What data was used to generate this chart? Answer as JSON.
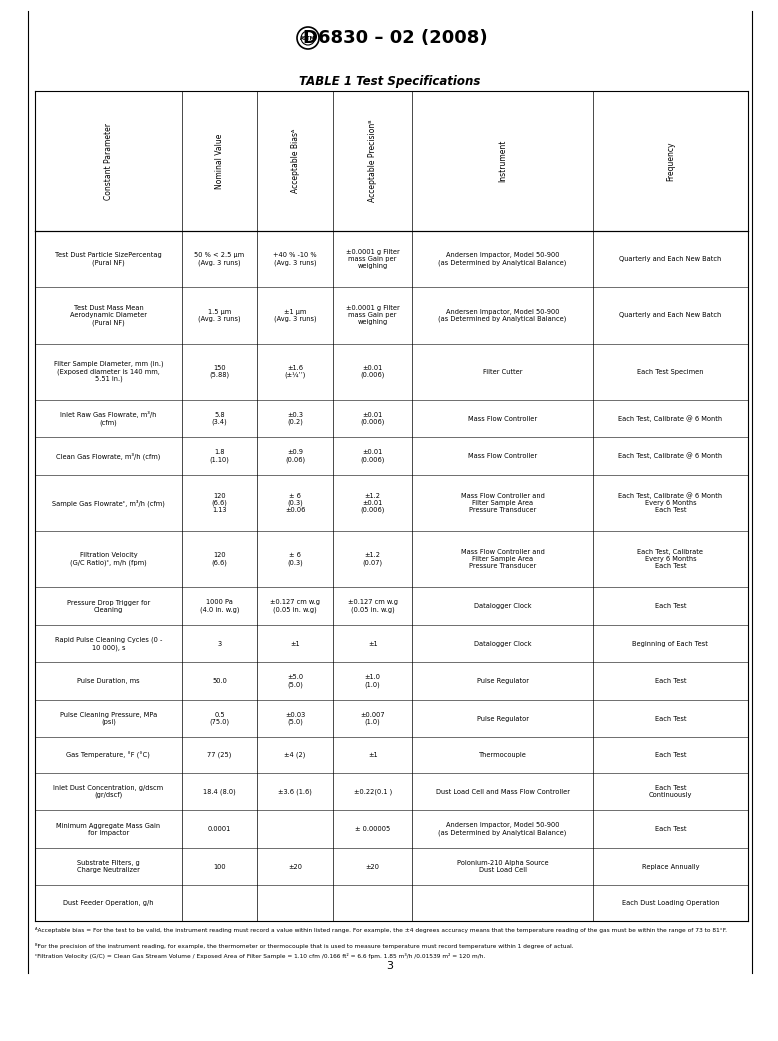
{
  "title": "D6830 – 02 (2008)",
  "table_title": "TABLE 1 Test Specifications",
  "page_number": "3",
  "col_headers": [
    "Constant Parameter",
    "Nominal Value",
    "Acceptable Biasᴬ",
    "Acceptable Precisionᴮ",
    "Instrument",
    "Frequency"
  ],
  "rows": [
    {
      "parameter": "Test Dust Particle SizePercentag\n(Pural NF)",
      "nominal": "50 % < 2.5 μm\n(Avg. 3 runs)",
      "bias": "+40 % -10 %\n(Avg. 3 runs)",
      "precision": "±0.0001 g Filter\nmass Gain per\nweighing",
      "instrument": "Andersen Impactor, Model 50-900\n(as Determined by Analytical Balance)",
      "frequency": "Quarterly and Each New Batch"
    },
    {
      "parameter": "Test Dust Mass Mean\nAerodynamic Diameter\n(Pural NF)",
      "nominal": "1.5 μm\n(Avg. 3 runs)",
      "bias": "±1 μm\n(Avg. 3 runs)",
      "precision": "±0.0001 g Filter\nmass Gain per\nweighing",
      "instrument": "Andersen Impactor, Model 50-900\n(as Determined by Analytical Balance)",
      "frequency": "Quarterly and Each New Batch"
    },
    {
      "parameter": "Filter Sample Diameter, mm (in.)\n(Exposed diameter is 140 mm,\n5.51 in.)",
      "nominal": "150\n(5.88)",
      "bias": "±1.6\n(±¼’’)",
      "precision": "±0.01\n(0.006)",
      "instrument": "Filter Cutter",
      "frequency": "Each Test Specimen"
    },
    {
      "parameter": "Inlet Raw Gas Flowrate, m³/h\n(cfm)",
      "nominal": "5.8\n(3.4)",
      "bias": "±0.3\n(0.2)",
      "precision": "±0.01\n(0.006)",
      "instrument": "Mass Flow Controller",
      "frequency": "Each Test, Calibrate @ 6 Month"
    },
    {
      "parameter": "Clean Gas Flowrate, m³/h (cfm)",
      "nominal": "1.8\n(1.10)",
      "bias": "±0.9\n(0.06)",
      "precision": "±0.01\n(0.006)",
      "instrument": "Mass Flow Controller",
      "frequency": "Each Test, Calibrate @ 6 Month"
    },
    {
      "parameter": "Sample Gas Flowrateᶜ, m³/h (cfm)",
      "nominal": "120\n(6.6)\n1.13",
      "bias": "± 6\n(0.3)\n±0.06",
      "precision": "±1.2\n±0.01\n(0.006)",
      "instrument": "Mass Flow Controller and\nFilter Sample Area\nPressure Transducer",
      "frequency": "Each Test, Calibrate @ 6 Month\nEvery 6 Months\nEach Test"
    },
    {
      "parameter": "Filtration Velocity\n(G/C Ratio)ᶜ, m/h (fpm)",
      "nominal": "120\n(6.6)",
      "bias": "± 6\n(0.3)",
      "precision": "±1.2\n(0.07)",
      "instrument": "Mass Flow Controller and\nFilter Sample Area\nPressure Transducer",
      "frequency": "Each Test, Calibrate\nEvery 6 Months\nEach Test"
    },
    {
      "parameter": "Pressure Drop Trigger for\nCleaning",
      "nominal": "1000 Pa\n(4.0 in. w.g)",
      "bias": "±0.127 cm w.g\n(0.05 in. w.g)",
      "precision": "±0.127 cm w.g\n(0.05 in. w.g)",
      "instrument": "Datalogger Clock",
      "frequency": "Each Test"
    },
    {
      "parameter": "Rapid Pulse Cleaning Cycles (0 -\n10 000), s",
      "nominal": "3",
      "bias": "±1",
      "precision": "±1",
      "instrument": "Datalogger Clock",
      "frequency": "Beginning of Each Test"
    },
    {
      "parameter": "Pulse Duration, ms",
      "nominal": "50.0",
      "bias": "±5.0\n(5.0)",
      "precision": "±1.0\n(1.0)",
      "instrument": "Pulse Regulator",
      "frequency": "Each Test"
    },
    {
      "parameter": "Pulse Cleaning Pressure, MPa\n(psi)",
      "nominal": "0.5\n(75.0)",
      "bias": "±0.03\n(5.0)",
      "precision": "±0.007\n(1.0)",
      "instrument": "Pulse Regulator",
      "frequency": "Each Test"
    },
    {
      "parameter": "Gas Temperature, °F (°C)",
      "nominal": "77 (25)",
      "bias": "±4 (2)",
      "precision": "±1",
      "instrument": "Thermocouple",
      "frequency": "Each Test"
    },
    {
      "parameter": "Inlet Dust Concentration, g/dscm\n(gr/dscf)",
      "nominal": "18.4 (8.0)",
      "bias": "±3.6 (1.6)",
      "precision": "±0.22(0.1 )",
      "instrument": "Dust Load Cell and Mass Flow Controller",
      "frequency": "Each Test\nContinuously"
    },
    {
      "parameter": "Minimum Aggregate Mass Gain\nfor Impactor",
      "nominal": "0.0001",
      "bias": "",
      "precision": "± 0.00005",
      "instrument": "Andersen Impactor, Model 50-900\n(as Determined by Analytical Balance)",
      "frequency": "Each Test"
    },
    {
      "parameter": "Substrate Filters, g\nCharge Neutralizer",
      "nominal": "100",
      "bias": "±20",
      "precision": "±20",
      "instrument": "Polonium-210 Alpha Source\nDust Load Cell",
      "frequency": "Replace Annually"
    },
    {
      "parameter": "Dust Feeder Operation, g/h",
      "nominal": "",
      "bias": "",
      "precision": "",
      "instrument": "",
      "frequency": "Each Dust Loading Operation"
    }
  ],
  "footnote_a": "ᴬAcceptable bias = For the test to be valid, the instrument reading must record a value within listed range. For example, the ±4 degrees accuracy means that the temperature reading of the gas must be within the range of 73 to 81°F.",
  "footnote_b": "ᴮFor the precision of the instrument reading, for example, the thermometer or thermocouple that is used to measure temperature must record temperature within 1 degree of actual.",
  "footnote_c": "ᶜFiltration Velocity (G/C) = Clean Gas Stream Volume / Exposed Area of Filter Sample = 1.10 cfm /0.166 ft² = 6.6 fpm. 1.85 m³/h /0.01539 m² = 120 m/h."
}
